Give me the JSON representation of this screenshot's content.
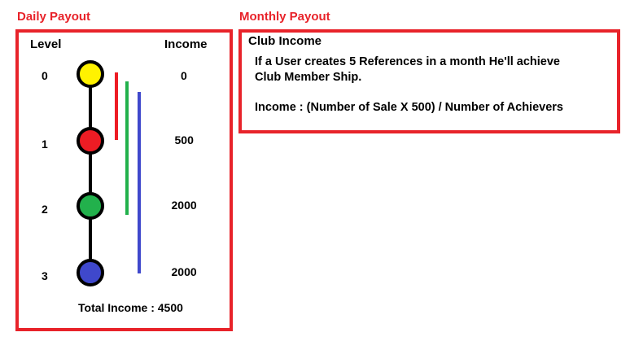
{
  "daily": {
    "title": "Daily Payout",
    "level_header": "Level",
    "income_header": "Income",
    "levels": [
      {
        "level": "0",
        "income": "0",
        "color": "#fff200"
      },
      {
        "level": "1",
        "income": "500",
        "color": "#ed1c24"
      },
      {
        "level": "2",
        "income": "2000",
        "color": "#22b14c"
      },
      {
        "level": "3",
        "income": "2000",
        "color": "#3f48cc"
      }
    ],
    "span_colors": [
      "#ed1c24",
      "#22b14c",
      "#3f48cc"
    ],
    "total_label": "Total Income : 4500"
  },
  "monthly": {
    "title": "Monthly Payout",
    "club_title": "Club Income",
    "club_description": "If a User creates 5 References in a month He'll achieve\nClub Member Ship.",
    "club_formula": "Income : (Number of Sale X 500) / Number of Achievers"
  }
}
